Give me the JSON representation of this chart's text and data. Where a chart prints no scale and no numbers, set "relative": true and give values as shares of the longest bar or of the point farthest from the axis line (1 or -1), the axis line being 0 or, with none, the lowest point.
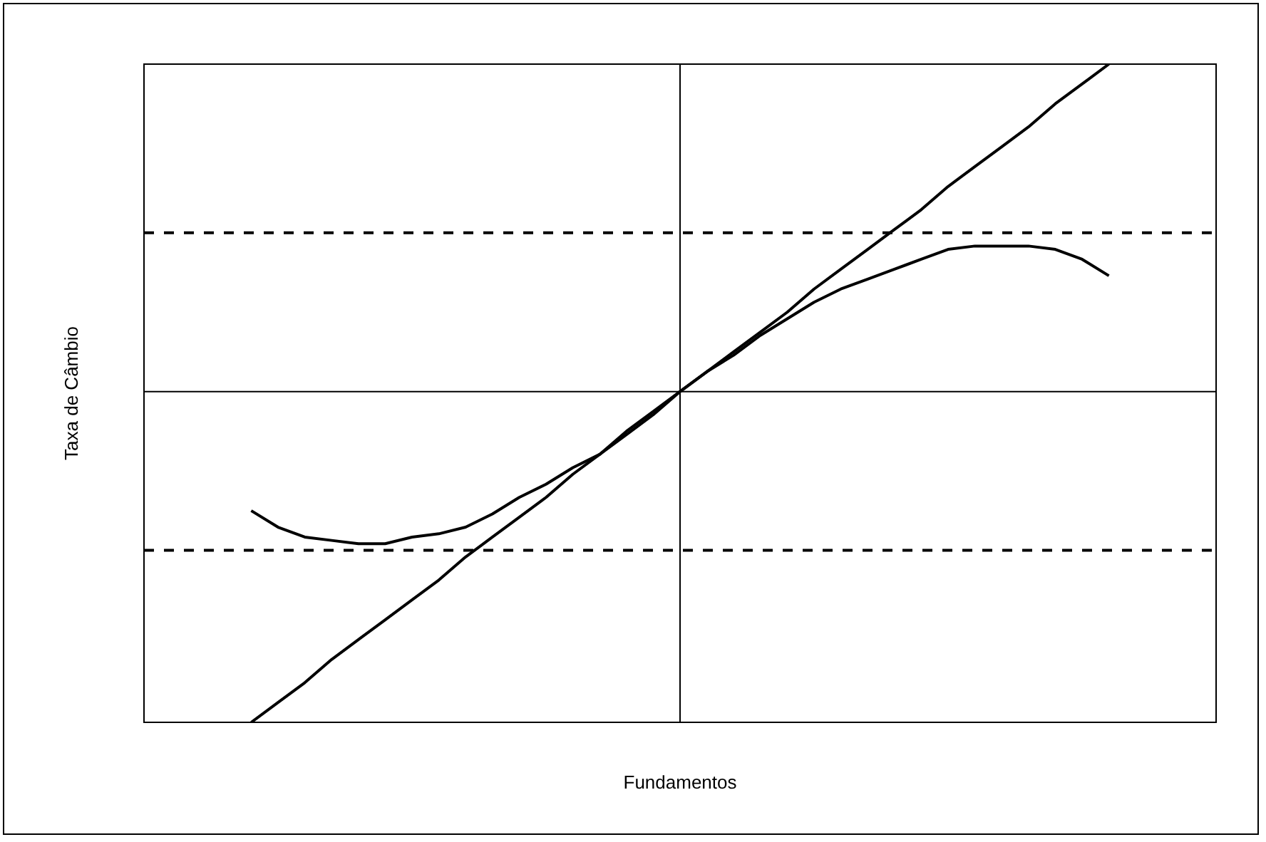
{
  "chart_data": {
    "type": "line",
    "xlabel": "Fundamentos",
    "ylabel": "Taxa de Câmbio",
    "relative": true,
    "legend": false,
    "marker": "none",
    "line_style": "solid",
    "categories": [
      null,
      null,
      null,
      null,
      null,
      null,
      null,
      null,
      null,
      null,
      null,
      null,
      null,
      null,
      null,
      null,
      null,
      null,
      null,
      null,
      null,
      null,
      null,
      null,
      null,
      null,
      null,
      null,
      null,
      null,
      null,
      null,
      null,
      null,
      null,
      null,
      null,
      null,
      null,
      null,
      null
    ],
    "series": [
      {
        "color": "#000000",
        "values": [
          null,
          null,
          null,
          null,
          -1,
          -0.94,
          -0.88,
          -0.81,
          -0.75,
          -0.69,
          -0.63,
          -0.57,
          -0.5,
          -0.44,
          -0.38,
          -0.32,
          -0.25,
          -0.19,
          -0.13,
          -0.07,
          0,
          0.06,
          0.12,
          0.18,
          0.24,
          0.31,
          0.37,
          0.43,
          0.49,
          0.55,
          0.62,
          0.68,
          0.74,
          0.8,
          0.87,
          0.93,
          0.99,
          null,
          null,
          null,
          null
        ]
      },
      {
        "color": "#000000",
        "values": [
          null,
          null,
          null,
          null,
          -0.36,
          -0.41,
          -0.44,
          -0.45,
          -0.46,
          -0.46,
          -0.44,
          -0.43,
          -0.41,
          -0.37,
          -0.32,
          -0.28,
          -0.23,
          -0.19,
          -0.12,
          -0.06,
          0,
          0.06,
          0.11,
          0.17,
          0.22,
          0.27,
          0.31,
          0.34,
          0.37,
          0.4,
          0.43,
          0.44,
          0.44,
          0.44,
          0.43,
          0.4,
          0.35,
          null,
          null,
          null,
          null
        ]
      }
    ],
    "ref_lines": [
      {
        "axis": "y",
        "value": 0.48,
        "color": "#000000",
        "line_style": "dashed"
      },
      {
        "axis": "y",
        "value": -0.48,
        "color": "#000000",
        "line_style": "dashed"
      }
    ]
  }
}
